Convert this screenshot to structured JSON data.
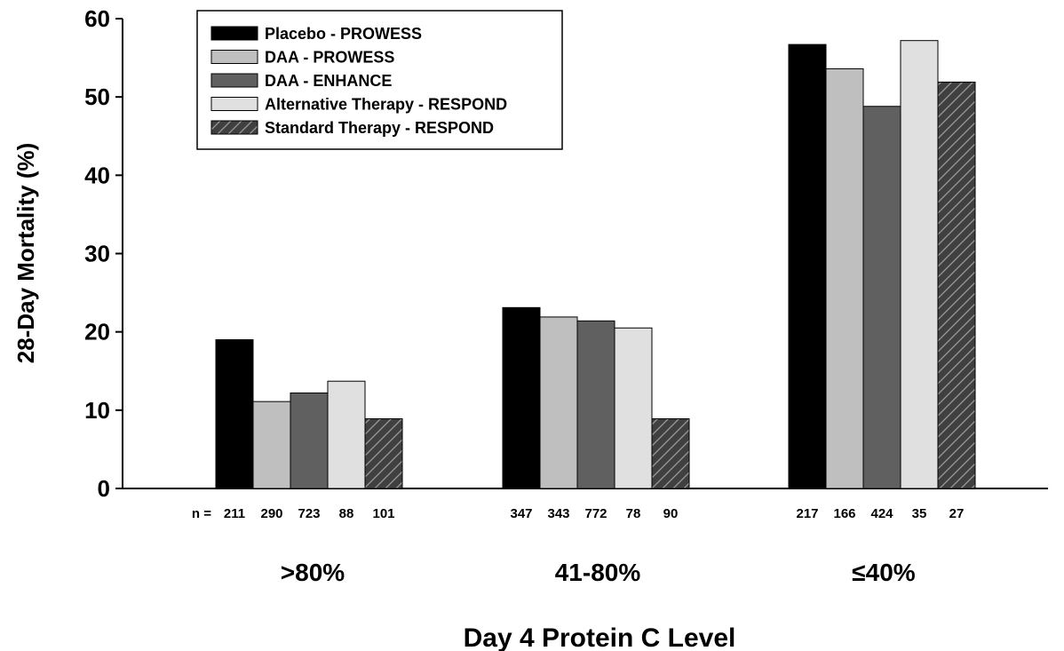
{
  "chart_data": {
    "type": "bar",
    "title": "",
    "xlabel": "Day 4 Protein C Level",
    "ylabel": "28-Day Mortality (%)",
    "ylim": [
      0,
      60
    ],
    "yticks": [
      0,
      10,
      20,
      30,
      40,
      50,
      60
    ],
    "categories": [
      ">80%",
      "41-80%",
      "≤40%"
    ],
    "n_prefix": "n =",
    "series": [
      {
        "name": "Placebo - PROWESS",
        "values": [
          19.0,
          23.1,
          56.7
        ],
        "n": [
          "211",
          "347",
          "217"
        ],
        "color": "#000000",
        "pattern": "solid"
      },
      {
        "name": "DAA - PROWESS",
        "values": [
          11.1,
          21.9,
          53.6
        ],
        "n": [
          "290",
          "343",
          "166"
        ],
        "color": "#bfbfbf",
        "pattern": "solid"
      },
      {
        "name": "DAA - ENHANCE",
        "values": [
          12.2,
          21.4,
          48.8
        ],
        "n": [
          "723",
          "772",
          "424"
        ],
        "color": "#606060",
        "pattern": "solid"
      },
      {
        "name": "Alternative Therapy - RESPOND",
        "values": [
          13.7,
          20.5,
          57.2
        ],
        "n": [
          "88",
          "78",
          "35"
        ],
        "color": "#e0e0e0",
        "pattern": "solid"
      },
      {
        "name": "Standard Therapy - RESPOND",
        "values": [
          8.9,
          8.9,
          51.9
        ],
        "n": [
          "101",
          "90",
          "27"
        ],
        "color": "#404040",
        "pattern": "hatch"
      }
    ],
    "legend_position": "top-left",
    "grid": false
  }
}
